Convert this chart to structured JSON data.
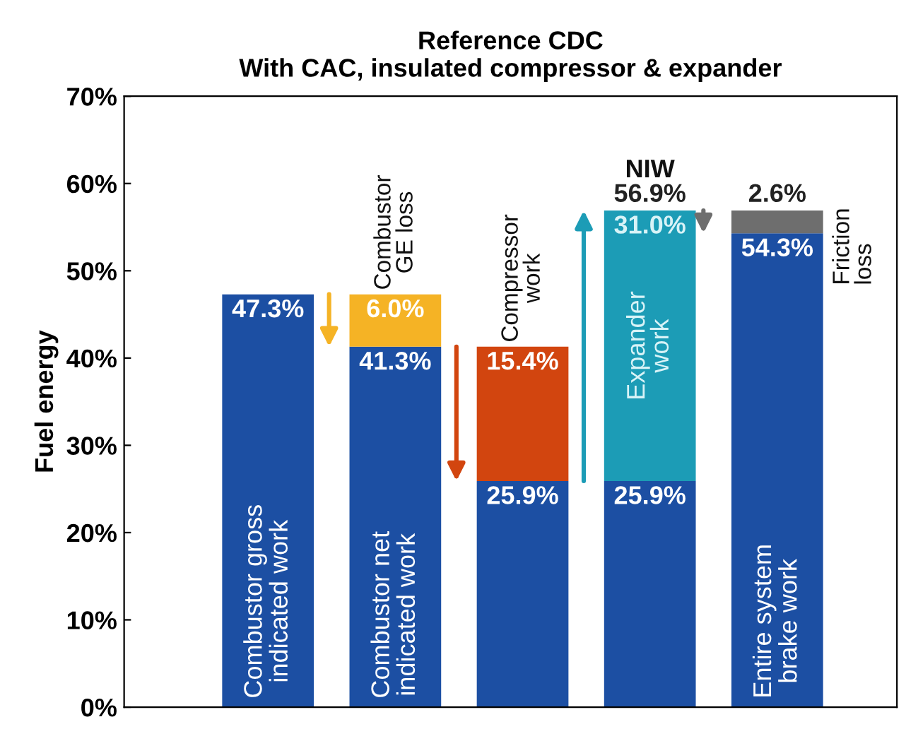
{
  "chart_data": {
    "type": "bar",
    "title": "Reference CDC\nWith CAC, insulated compressor & expander",
    "ylabel": "Fuel energy",
    "categories": [
      "Combustor gross\nindicated work",
      "Combustor net\nindicated work",
      null,
      null,
      "Entire system\nbrake work"
    ],
    "stacked": true,
    "series": [
      {
        "color": "#1c4fa3",
        "values": [
          47.3,
          41.3,
          25.9,
          25.9,
          54.3
        ],
        "value_labels": [
          "47.3%",
          "41.3%",
          "25.9%",
          "25.9%",
          "54.3%"
        ]
      },
      {
        "colors": [
          "#1c4fa3",
          "#f5b325",
          "#d2450f",
          "#1c9cb6",
          "#6e6e6e"
        ],
        "values": [
          null,
          6.0,
          15.4,
          31.0,
          2.6
        ],
        "value_labels": [
          null,
          "6.0%",
          "15.4%",
          "31.0%",
          "2.6%"
        ]
      }
    ],
    "totals": [
      null,
      null,
      null,
      "56.9%",
      null
    ],
    "annotations": [
      {
        "text": "Combustor\nGE loss",
        "y": 47.3
      },
      {
        "text": "Compressor\nwork",
        "y": 41.3
      },
      "Expander\nwork",
      "Friction\nloss",
      {
        "text": "NIW",
        "y": 56.9
      }
    ],
    "ylim": [
      0,
      70
    ],
    "yticks": [
      {
        "value": 0,
        "label": "0%"
      },
      {
        "value": 10,
        "label": "10%"
      },
      {
        "value": 20,
        "label": "20%"
      },
      {
        "value": 30,
        "label": "30%"
      },
      {
        "value": 40,
        "label": "40%"
      },
      {
        "value": 50,
        "label": "50%"
      },
      {
        "value": 60,
        "label": "60%"
      },
      {
        "value": 70,
        "label": "70%"
      }
    ],
    "grid": false,
    "legend": false
  }
}
